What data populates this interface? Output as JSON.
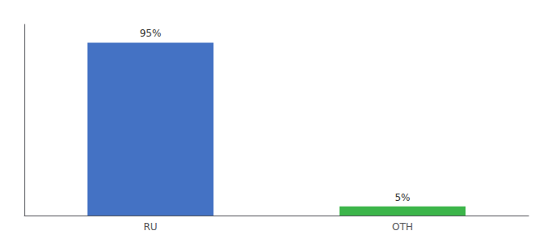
{
  "chart_data": {
    "type": "bar",
    "categories": [
      "RU",
      "OTH"
    ],
    "values": [
      95,
      5
    ],
    "colors": [
      "#4472c4",
      "#3cb54a"
    ],
    "data_labels": true,
    "value_labels": [
      "95%",
      "5%"
    ],
    "ylim": [
      0,
      105
    ],
    "tick_labels": "x",
    "grid": false
  }
}
